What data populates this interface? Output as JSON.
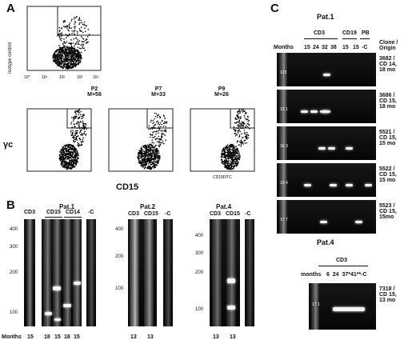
{
  "panels": {
    "a": "A",
    "b": "B",
    "c": "C"
  },
  "A": {
    "isotype_label": "Isotype control",
    "y_label": "γc",
    "x_label": "CD15",
    "small_x_label": "CD15FITC",
    "plots": [
      {
        "title": "P2",
        "sub": "M+56"
      },
      {
        "title": "P7",
        "sub": "M+33"
      },
      {
        "title": "P9",
        "sub": "M+26"
      }
    ],
    "tick_labels": [
      "10⁰",
      "10¹",
      "10²",
      "10³",
      "10⁴"
    ]
  },
  "B": {
    "ladder": [
      "400",
      "300",
      "200",
      "100"
    ],
    "months_label": "Months",
    "groups": [
      {
        "title": "Pat.1",
        "lanes": [
          "CD3",
          "CD15",
          "CD14",
          "-C"
        ],
        "months": [
          "15",
          "18",
          "15",
          "18",
          "15"
        ]
      },
      {
        "title": "Pat.2",
        "lanes": [
          "CD3",
          "CD15",
          "-C"
        ],
        "months": [
          "13",
          "13"
        ]
      },
      {
        "title": "Pat.4",
        "lanes": [
          "CD3",
          "CD15",
          "-C"
        ],
        "months": [
          "13",
          "13"
        ]
      }
    ]
  },
  "C": {
    "pat1_title": "Pat.1",
    "pat4_title": "Pat.4",
    "months_label": "Months",
    "months_label_lower": "months",
    "header_groups": [
      "CD3",
      "CD19",
      "PB"
    ],
    "lane_months": [
      "15",
      "24",
      "32",
      "38",
      "15",
      "15",
      "-C"
    ],
    "clone_header": "Clone / Origin",
    "clones": [
      {
        "line1": "3682 /",
        "line2": "CD 14,",
        "line3": "18 mo",
        "marker": "123"
      },
      {
        "line1": "3686 /",
        "line2": "CD 15,",
        "line3": "18 mo",
        "marker": "13 1"
      },
      {
        "line1": "5521 /",
        "line2": "CD 15,",
        "line3": "15 mo",
        "marker": "16 3"
      },
      {
        "line1": "5522 /",
        "line2": "CD 15,",
        "line3": "15 mo",
        "marker": "13 4"
      },
      {
        "line1": "5523 /",
        "line2": "CD 15,",
        "line3": "15mo",
        "marker": "17 7"
      }
    ],
    "pat4_group": "CD3",
    "pat4_months": "6  24  37*41**-C",
    "pat4_clone": {
      "line1": "7318 /",
      "line2": "CD 15,",
      "line3": "13 mo",
      "marker": "17 1"
    }
  }
}
